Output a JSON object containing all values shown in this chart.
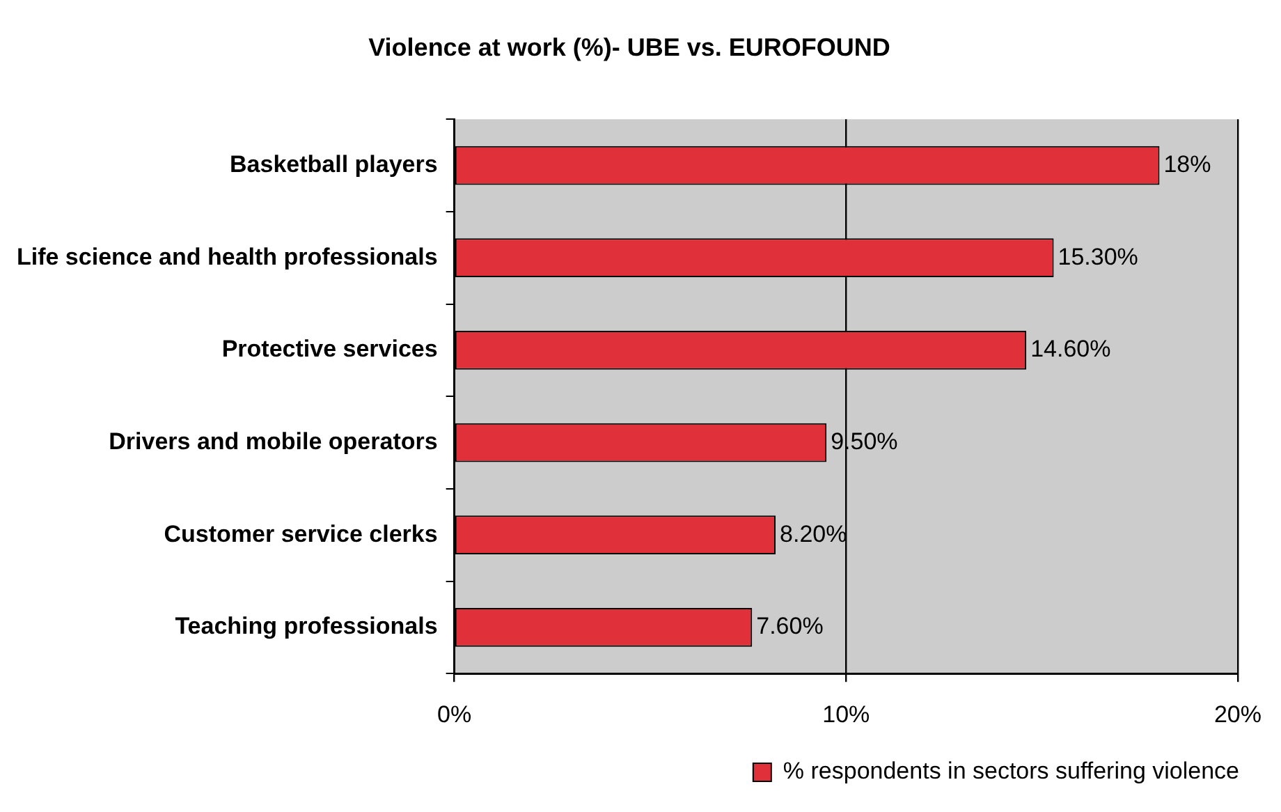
{
  "chart_data": {
    "type": "bar",
    "orientation": "horizontal",
    "title": "Violence at work (%)- UBE vs. EUROFOUND",
    "categories": [
      "Basketball players",
      "Life science and health professionals",
      "Protective services",
      "Drivers and mobile operators",
      "Customer service clerks",
      "Teaching professionals"
    ],
    "series": [
      {
        "name": "% respondents in sectors suffering violence",
        "color": "#e0303a",
        "values": [
          18,
          15.3,
          14.6,
          9.5,
          8.2,
          7.6
        ],
        "value_labels": [
          "18%",
          "15.30%",
          "14.60%",
          "9.50%",
          "8.20%",
          "7.60%"
        ]
      }
    ],
    "xlim": [
      0,
      20
    ],
    "xticks": [
      {
        "value": 0,
        "label": "0%"
      },
      {
        "value": 10,
        "label": "10%"
      },
      {
        "value": 20,
        "label": "20%"
      }
    ],
    "grid": "x",
    "legend": "bottom right"
  }
}
